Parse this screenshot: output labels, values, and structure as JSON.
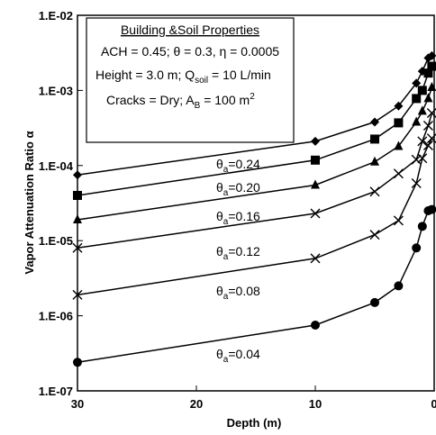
{
  "chart_data": {
    "type": "line",
    "x_scale": "linear",
    "y_scale": "log",
    "xlim": [
      30,
      0
    ],
    "ylim": [
      1e-07,
      0.01
    ],
    "xlabel": "Depth (m)",
    "ylabel": "Vapor Attenuation Ratio α",
    "xticks": [
      {
        "value": 30,
        "label": "30"
      },
      {
        "value": 20,
        "label": "20"
      },
      {
        "value": 10,
        "label": "10"
      },
      {
        "value": 0,
        "label": "0"
      }
    ],
    "yticks": [
      {
        "value": 0.01,
        "label": "1.E-02"
      },
      {
        "value": 0.001,
        "label": "1.E-03"
      },
      {
        "value": 0.0001,
        "label": "1.E-04"
      },
      {
        "value": 1e-05,
        "label": "1.E-05"
      },
      {
        "value": 1e-06,
        "label": "1.E-06"
      },
      {
        "value": 1e-07,
        "label": "1.E-07"
      }
    ],
    "annotation_box": {
      "title": "Building &Soil Properties",
      "lines": [
        "ACH = 0.45; θ = 0.3, η = 0.0005",
        "Height = 3.0 m; Q",
        "Cracks = Dry; A",
        " = 100 m"
      ],
      "subscripts": [
        "soil",
        "B"
      ],
      "suffixes": [
        " = 10 L/min",
        "2"
      ]
    },
    "series": [
      {
        "name": "θa=0.24",
        "label_prefix": "θ",
        "label_sub": "a",
        "label_value": "=0.24",
        "marker": "diamond",
        "x": [
          30,
          10,
          5,
          3,
          1.5,
          1,
          0.5,
          0.2
        ],
        "y": [
          7.5e-05,
          0.00021,
          0.00038,
          0.00062,
          0.00125,
          0.0018,
          0.0027,
          0.0029
        ]
      },
      {
        "name": "θa=0.20",
        "label_prefix": "θ",
        "label_sub": "a",
        "label_value": "=0.20",
        "marker": "square",
        "x": [
          30,
          10,
          5,
          3,
          1.5,
          1,
          0.5,
          0.2
        ],
        "y": [
          4e-05,
          0.000118,
          0.000225,
          0.00037,
          0.00078,
          0.001,
          0.0017,
          0.0021
        ]
      },
      {
        "name": "θa=0.16",
        "label_prefix": "θ",
        "label_sub": "a",
        "label_value": "=0.16",
        "marker": "triangle",
        "x": [
          30,
          10,
          5,
          3,
          1.5,
          1,
          0.5,
          0.2
        ],
        "y": [
          1.9e-05,
          5.5e-05,
          0.000112,
          0.00018,
          0.00038,
          0.00053,
          0.00078,
          0.0011
        ]
      },
      {
        "name": "θa=0.12",
        "label_prefix": "θ",
        "label_sub": "a",
        "label_value": "=0.12",
        "marker": "x",
        "x": [
          30,
          10,
          5,
          3,
          1.5,
          1,
          0.5,
          0.2
        ],
        "y": [
          8e-06,
          2.3e-05,
          4.5e-05,
          7.8e-05,
          0.00012,
          0.00021,
          0.00034,
          0.0005
        ]
      },
      {
        "name": "θa=0.08",
        "label_prefix": "θ",
        "label_sub": "a",
        "label_value": "=0.08",
        "marker": "x",
        "x": [
          30,
          10,
          5,
          3,
          1.5,
          1,
          0.5,
          0.2
        ],
        "y": [
          1.9e-06,
          5.8e-06,
          1.2e-05,
          1.85e-05,
          5.8e-05,
          0.000125,
          0.000185,
          0.00023
        ]
      },
      {
        "name": "θa=0.04",
        "label_prefix": "θ",
        "label_sub": "a",
        "label_value": "=0.04",
        "marker": "circle",
        "x": [
          30,
          10,
          5,
          3,
          1.5,
          1,
          0.5,
          0.2
        ],
        "y": [
          2.4e-07,
          7.5e-07,
          1.5e-06,
          2.5e-06,
          8e-06,
          1.55e-05,
          2.5e-05,
          2.6e-05
        ]
      }
    ]
  }
}
